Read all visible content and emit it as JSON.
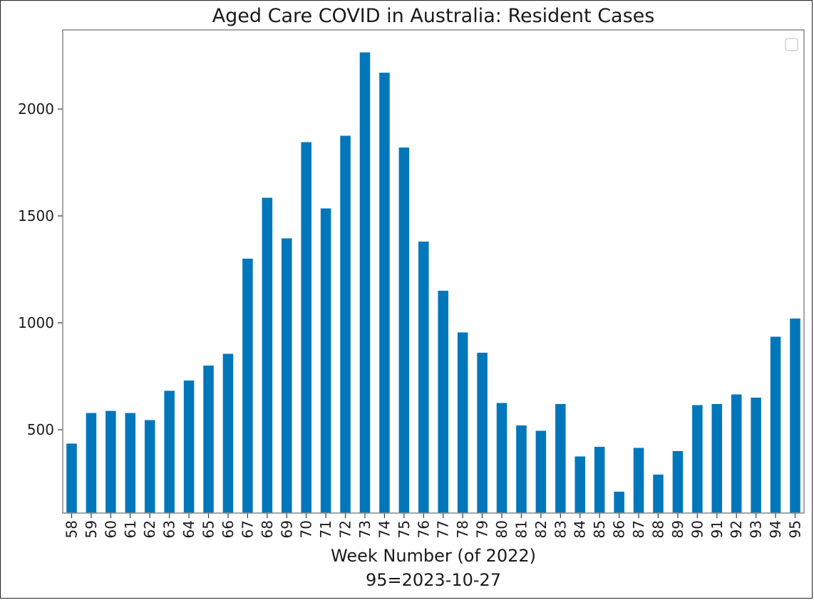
{
  "chart_data": {
    "type": "bar",
    "title": "Aged Care COVID in Australia: Resident Cases",
    "xlabel_line1": "Week Number (of 2022)",
    "xlabel_line2": "95=2023-10-27",
    "ylabel": "",
    "ylim": [
      110,
      2370
    ],
    "yticks": [
      500,
      1000,
      1500,
      2000
    ],
    "bar_color": "#0077bb",
    "legend": "top-right (empty)",
    "grid": false,
    "categories": [
      "58",
      "59",
      "60",
      "61",
      "62",
      "63",
      "64",
      "65",
      "66",
      "67",
      "68",
      "69",
      "70",
      "71",
      "72",
      "73",
      "74",
      "75",
      "76",
      "77",
      "78",
      "79",
      "80",
      "81",
      "82",
      "83",
      "84",
      "85",
      "86",
      "87",
      "88",
      "89",
      "90",
      "91",
      "92",
      "93",
      "94",
      "95"
    ],
    "values": [
      435,
      578,
      588,
      578,
      545,
      682,
      730,
      800,
      855,
      1300,
      1585,
      1395,
      1845,
      1535,
      1875,
      2265,
      2170,
      1820,
      1380,
      1150,
      955,
      860,
      625,
      520,
      495,
      620,
      375,
      420,
      210,
      415,
      290,
      400,
      615,
      620,
      665,
      650,
      935,
      1020
    ]
  }
}
